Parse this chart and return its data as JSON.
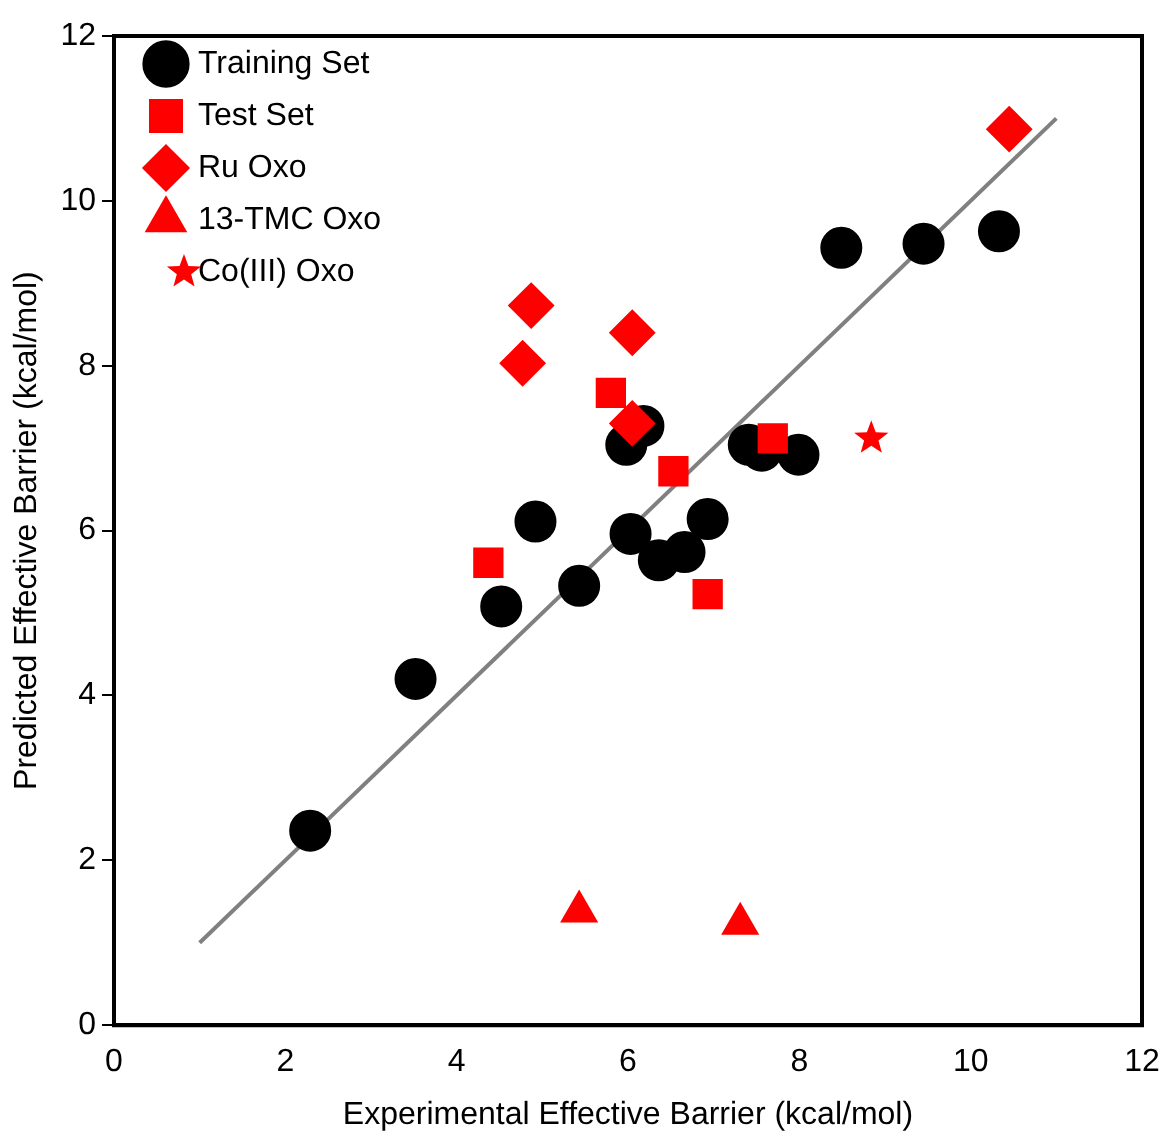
{
  "chart_data": {
    "type": "scatter",
    "xlabel": "Experimental Effective Barrier (kcal/mol)",
    "ylabel": "Predicted Effective Barrier (kcal/mol)",
    "xlim": [
      0,
      12
    ],
    "ylim": [
      0,
      12
    ],
    "xticks": [
      0,
      2,
      4,
      6,
      8,
      10,
      12
    ],
    "yticks": [
      0,
      2,
      4,
      6,
      8,
      10,
      12
    ],
    "grid": false,
    "legend": "top left",
    "series": [
      {
        "name": "Training Set",
        "color": "#000000",
        "marker": "circle",
        "x": [
          2.29,
          3.52,
          4.52,
          4.92,
          5.43,
          6.03,
          6.36,
          6.66,
          6.93,
          5.98,
          6.18,
          7.41,
          7.56,
          7.99,
          8.49,
          9.45,
          10.33
        ],
        "values": [
          2.36,
          4.2,
          5.08,
          6.11,
          5.33,
          5.96,
          5.64,
          5.74,
          6.14,
          7.04,
          7.27,
          7.04,
          6.97,
          6.92,
          9.43,
          9.48,
          9.63
        ]
      },
      {
        "name": "Test Set",
        "color": "#ff0000",
        "marker": "square",
        "x": [
          4.37,
          5.8,
          6.53,
          6.93,
          7.69
        ],
        "values": [
          5.61,
          7.67,
          6.72,
          5.23,
          7.12
        ]
      },
      {
        "name": "Ru Oxo",
        "color": "#ff0000",
        "marker": "diamond",
        "x": [
          4.77,
          4.87,
          6.05,
          6.05,
          10.45
        ],
        "values": [
          8.03,
          8.73,
          8.4,
          7.3,
          10.87
        ]
      },
      {
        "name": "13-TMC Oxo",
        "color": "#ff0000",
        "marker": "triangle",
        "x": [
          5.43,
          7.31
        ],
        "values": [
          1.38,
          1.23
        ]
      },
      {
        "name": "Co(III) Oxo",
        "color": "#ff0000",
        "marker": "star",
        "x": [
          8.84
        ],
        "values": [
          7.12
        ]
      },
      {
        "type": "line",
        "color": "#808080",
        "marker": "none",
        "x": [
          1,
          11
        ],
        "values": [
          1,
          11
        ]
      }
    ]
  }
}
